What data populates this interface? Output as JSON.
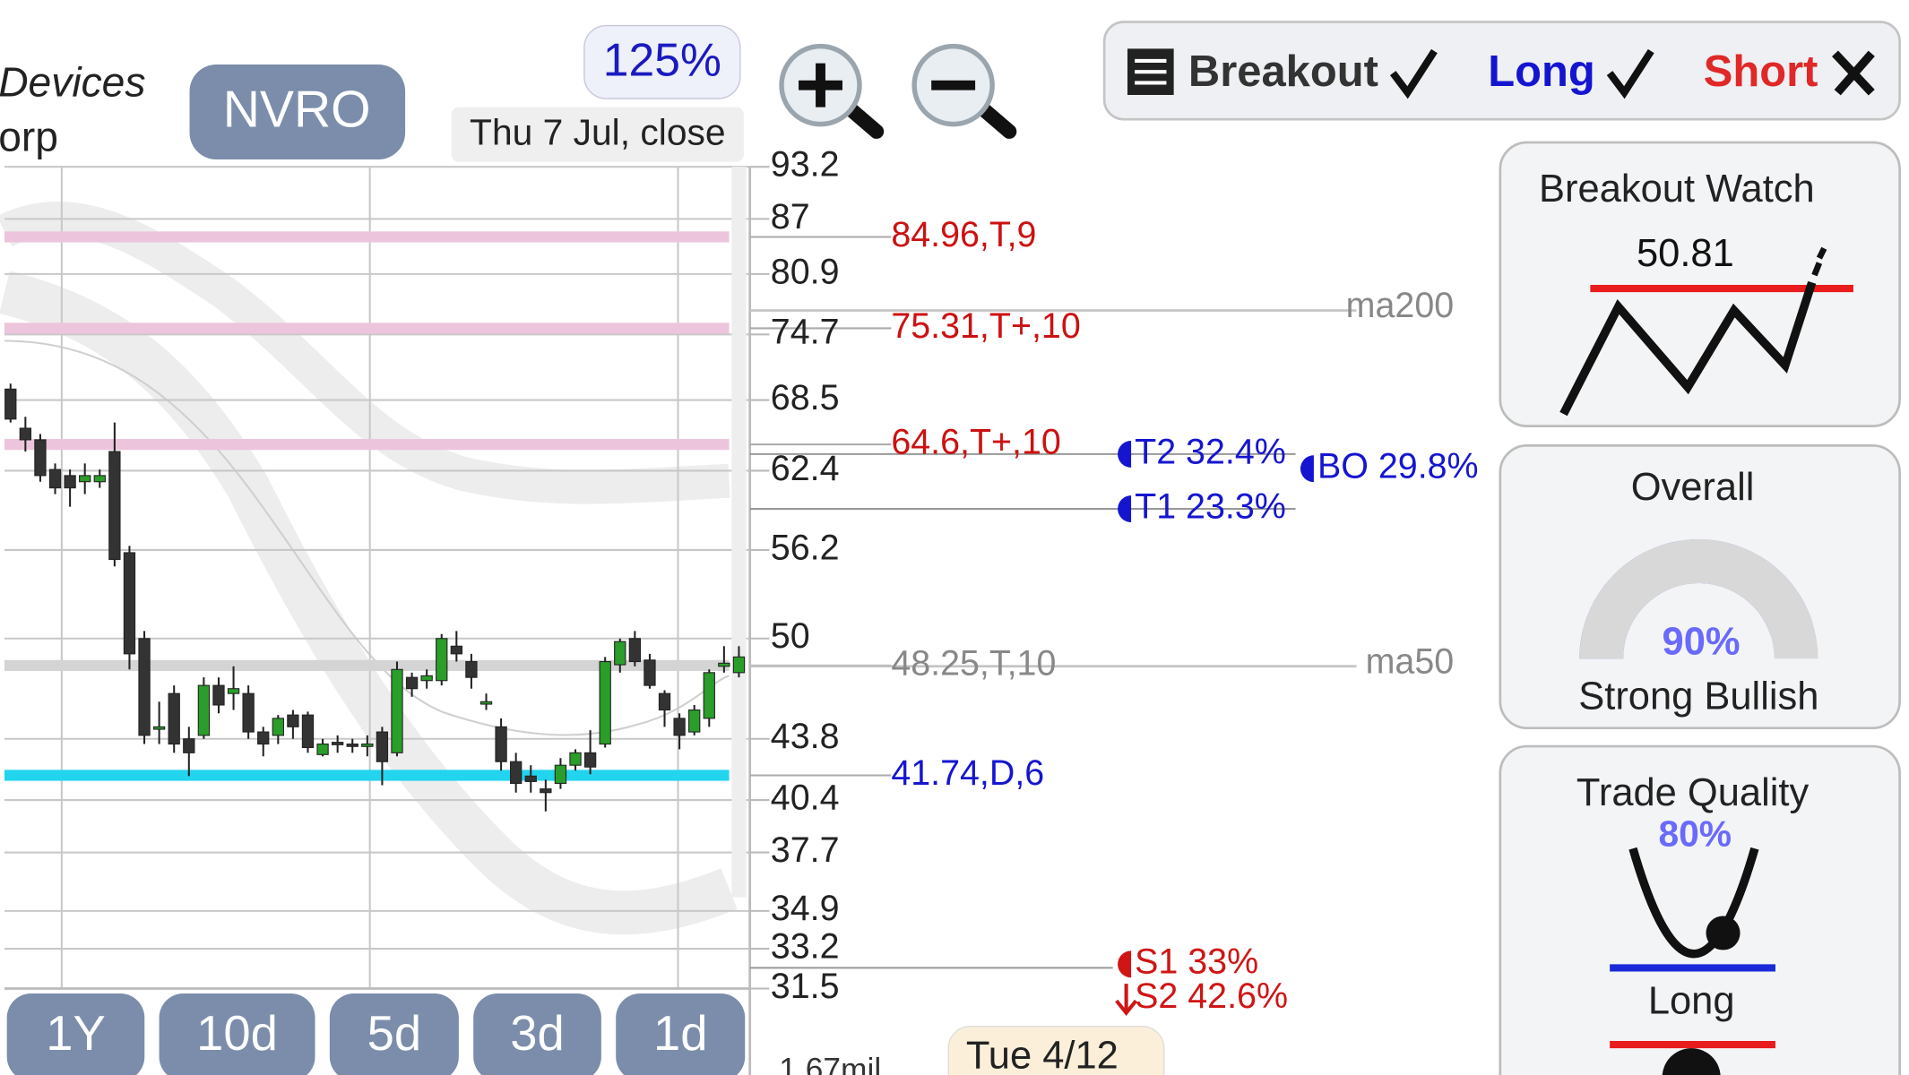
{
  "header": {
    "company_line1": "Devices",
    "company_line2": "orp",
    "ticker": "NVRO",
    "zoom": "125%",
    "date": "Thu 7 Jul, close"
  },
  "filters": [
    {
      "label": "Breakout",
      "color": "#333333",
      "checked": true
    },
    {
      "label": "Long",
      "color": "#1515d0",
      "checked": true
    },
    {
      "label": "Short",
      "color": "#e02828",
      "checked": false
    }
  ],
  "chart_data": {
    "type": "candlestick",
    "ylim": [
      31.5,
      93.2
    ],
    "log_scale": true,
    "grid": true,
    "yticks": [
      93.2,
      87,
      80.9,
      74.7,
      68.5,
      62.4,
      56.2,
      50,
      43.8,
      40.4,
      37.7,
      34.9,
      33.2,
      31.5
    ],
    "up_color": "#2a9d2a",
    "down_color": "#333333",
    "candles": {
      "open": [
        69.5,
        66,
        65,
        62.5,
        62,
        61.5,
        61.5,
        64,
        56,
        50,
        44.5,
        46.5,
        43.8,
        44,
        47,
        46.5,
        46.5,
        44.2,
        44,
        45.2,
        45.2,
        42.9,
        43.6,
        43.5,
        43.5,
        44.2,
        43,
        47.5,
        47.3,
        47.3,
        49.5,
        48.5,
        46,
        44.5,
        42.5,
        41.7,
        41,
        41.3,
        42.3,
        43,
        43.5,
        48.3,
        50,
        48.6,
        46.5,
        45,
        44.2,
        45,
        48.2,
        47.8
      ],
      "high": [
        70,
        67,
        65.5,
        63,
        62.5,
        63,
        62.5,
        66.5,
        56.5,
        50.5,
        46,
        47,
        44.5,
        47.5,
        47.5,
        48.2,
        47,
        44.5,
        45.2,
        45.5,
        45.4,
        43.8,
        44,
        43.8,
        44,
        44.5,
        48.5,
        47.8,
        48,
        50.3,
        50.5,
        49,
        46.5,
        45,
        43,
        42.3,
        41.5,
        42.7,
        43.2,
        44.3,
        48.8,
        50,
        50.5,
        49,
        46.7,
        45.3,
        45.8,
        48,
        49.5,
        49.5
      ],
      "low": [
        66.5,
        64,
        61.5,
        60.5,
        59.5,
        60.5,
        61,
        55,
        48,
        43.5,
        43.5,
        43,
        41.7,
        43.8,
        45.3,
        45.5,
        43.8,
        42.8,
        43.5,
        43.8,
        43,
        42.8,
        43,
        43,
        42.8,
        41.2,
        42.8,
        46.3,
        46.8,
        47,
        48.5,
        46.8,
        45.5,
        42,
        40.8,
        40.8,
        39.8,
        41,
        42,
        41.8,
        43.3,
        47.8,
        48.2,
        46.8,
        44.5,
        43.2,
        44,
        44.5,
        47.8,
        47.5
      ],
      "close": [
        66.8,
        65,
        62,
        61,
        61,
        62,
        62,
        55.5,
        49,
        44,
        44.5,
        43.5,
        43,
        47,
        45.8,
        46.8,
        44.2,
        43.5,
        45,
        44.5,
        43.3,
        43.5,
        43.5,
        43.4,
        43.5,
        42.5,
        48,
        46.8,
        47.6,
        50,
        49,
        47.5,
        46,
        42.5,
        41.3,
        41.4,
        40.8,
        42.3,
        43,
        42.2,
        48.5,
        49.8,
        48.5,
        47,
        45.5,
        44,
        45.5,
        47.8,
        48.4,
        48.8
      ]
    },
    "levels": [
      {
        "value": 84.96,
        "label": "84.96,T,9",
        "color": "#cc1111",
        "band": "#ecc5dc"
      },
      {
        "value": 75.31,
        "label": "75.31,T+,10",
        "color": "#cc1111",
        "band": "#ecc5dc"
      },
      {
        "value": 64.6,
        "label": "64.6,T+,10",
        "color": "#cc1111",
        "band": "#ecc5dc"
      },
      {
        "value": 48.25,
        "label": "48.25,T,10",
        "color": "#888888",
        "band": "#d4d4d4"
      },
      {
        "value": 41.74,
        "label": "41.74,D,6",
        "color": "#1515d0",
        "band": "#22d4ee"
      }
    ],
    "moving_averages": [
      {
        "value": 77.1,
        "label": "ma200"
      },
      {
        "value": 48.2,
        "label": "ma50"
      }
    ],
    "targets": [
      {
        "label": "T2 32.4%",
        "color": "#1515d0"
      },
      {
        "label": "BO 29.8%",
        "color": "#1515d0"
      },
      {
        "label": "T1 23.3%",
        "color": "#1515d0"
      },
      {
        "label": "S1 33%",
        "color": "#d01515"
      },
      {
        "label": "S2 42.6%",
        "color": "#d01515"
      }
    ]
  },
  "periods": [
    "1Y",
    "10d",
    "5d",
    "3d",
    "1d"
  ],
  "footer": {
    "volume": "1.67mil",
    "date": "Tue 4/12"
  },
  "panels": {
    "breakout_watch": {
      "title": "Breakout Watch",
      "value": 50.81
    },
    "overall": {
      "title": "Overall",
      "value": 90,
      "value_label": "90%",
      "rating": "Strong Bullish"
    },
    "trade_quality": {
      "title": "Trade Quality",
      "value": 80,
      "value_label": "80%",
      "direction": "Long"
    }
  }
}
